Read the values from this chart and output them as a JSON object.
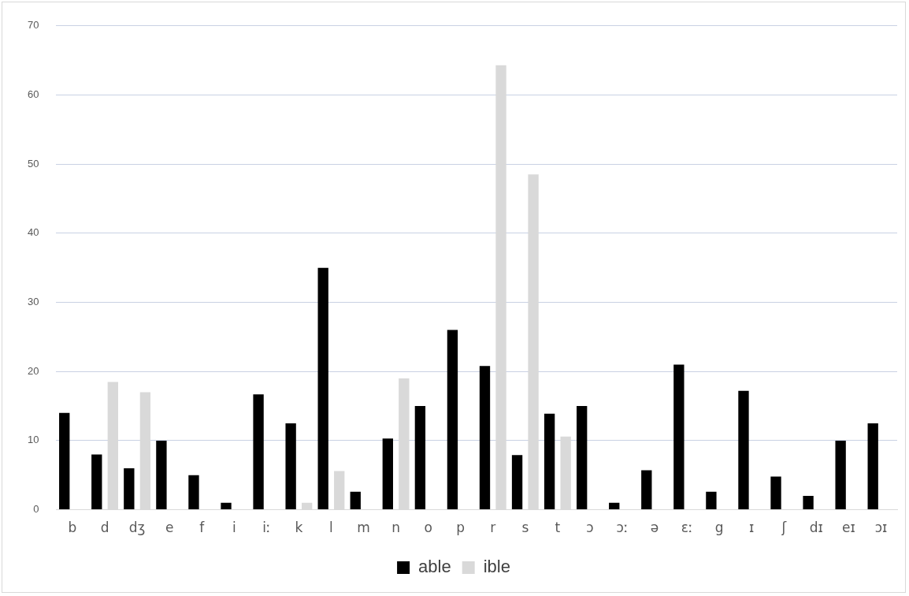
{
  "chart_data": {
    "type": "bar",
    "categories": [
      "b",
      "d",
      "dʒ",
      "e",
      "f",
      "i",
      "iː",
      "k",
      "l",
      "m",
      "n",
      "o",
      "p",
      "r",
      "s",
      "t",
      "ɔ",
      "ɔː",
      "ə",
      "ɛː",
      "g",
      "ɪ",
      "ʃ",
      "dɪ",
      "eɪ",
      "ɔɪ"
    ],
    "series": [
      {
        "name": "able",
        "color": "#000000",
        "values": [
          14,
          8,
          6,
          10,
          5,
          1,
          16.7,
          12.5,
          35,
          2.6,
          10.3,
          15,
          26,
          20.8,
          7.9,
          13.9,
          15,
          1,
          5.7,
          21,
          2.6,
          17.2,
          4.8,
          2,
          10,
          12.5
        ]
      },
      {
        "name": "ible",
        "color": "#d9d9d9",
        "values": [
          null,
          18.5,
          17,
          null,
          null,
          null,
          null,
          1,
          5.6,
          null,
          19,
          null,
          null,
          64.3,
          48.5,
          10.6,
          null,
          null,
          null,
          null,
          null,
          null,
          null,
          null,
          null,
          null
        ]
      }
    ],
    "ylim": [
      0,
      70
    ],
    "yticks": [
      0,
      10,
      20,
      30,
      40,
      50,
      60,
      70
    ],
    "grid": "y",
    "legend": "bottom"
  }
}
